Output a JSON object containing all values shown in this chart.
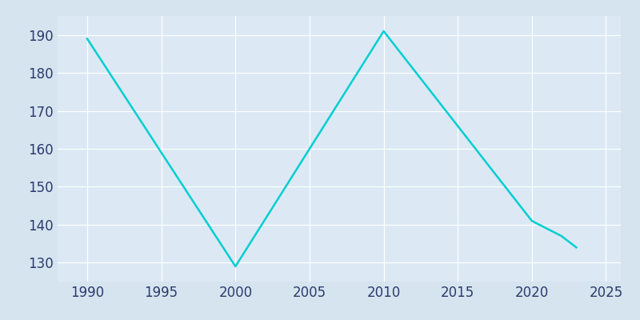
{
  "years": [
    1990,
    2000,
    2010,
    2020,
    2022,
    2023
  ],
  "population": [
    189,
    129,
    191,
    141,
    137,
    134
  ],
  "line_color": "#00CED1",
  "background_color": "#d6e4f0",
  "plot_background_color": "#dce9f5",
  "xlim": [
    1988,
    2026
  ],
  "ylim": [
    125,
    195
  ],
  "xticks": [
    1990,
    1995,
    2000,
    2005,
    2010,
    2015,
    2020,
    2025
  ],
  "yticks": [
    130,
    140,
    150,
    160,
    170,
    180,
    190
  ],
  "grid_color": "#ffffff",
  "tick_color": "#2d3a6b",
  "line_width": 1.8,
  "tick_fontsize": 12
}
